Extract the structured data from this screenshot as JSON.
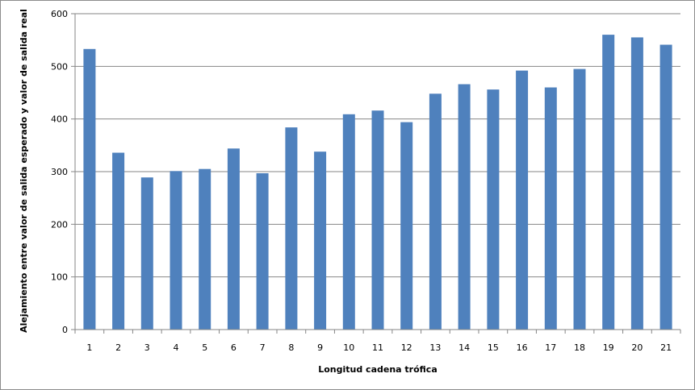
{
  "chart_data": {
    "type": "bar",
    "title": "",
    "xlabel": "Longitud cadena trófica",
    "ylabel": "Alejamiento entre valor de salida esperado y valor de salida real",
    "categories": [
      "1",
      "2",
      "3",
      "4",
      "5",
      "6",
      "7",
      "8",
      "9",
      "10",
      "11",
      "12",
      "13",
      "14",
      "15",
      "16",
      "17",
      "18",
      "19",
      "20",
      "21"
    ],
    "series": [
      {
        "values": [
          533,
          336,
          289,
          301,
          305,
          344,
          297,
          384,
          338,
          409,
          416,
          394,
          448,
          466,
          456,
          492,
          460,
          495,
          560,
          555,
          541
        ]
      }
    ],
    "ylim": [
      0,
      600
    ],
    "yticks": [
      0,
      100,
      200,
      300,
      400,
      500,
      600
    ],
    "grid": true,
    "legend": "none",
    "colors": {
      "bar": "#4f81bd",
      "gridline": "#868686",
      "axis": "#868686"
    }
  }
}
